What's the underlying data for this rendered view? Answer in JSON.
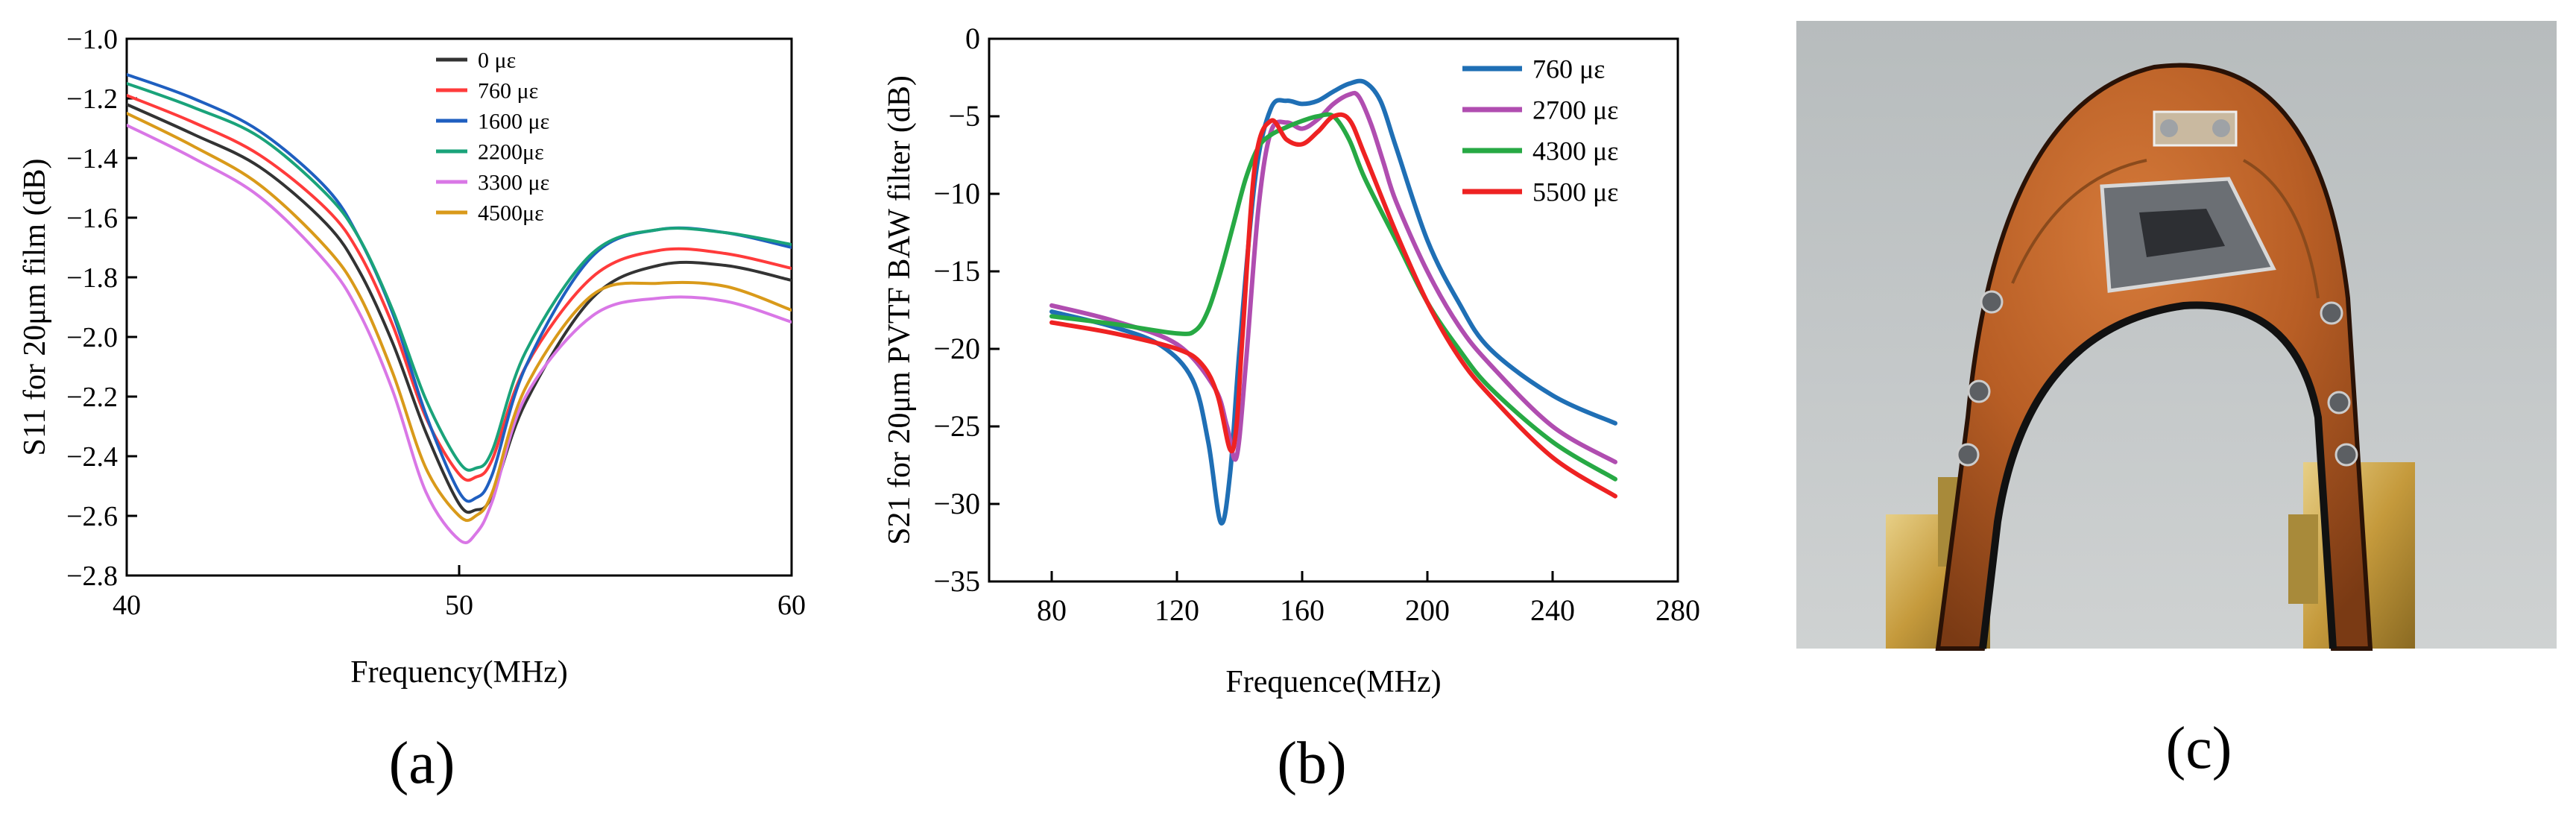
{
  "chart_data": [
    {
      "type": "line",
      "panel_label": "(a)",
      "xlabel": "Frequency(MHz)",
      "ylabel": "S11 for 20μm film (dB)",
      "xlim": [
        40,
        60
      ],
      "ylim": [
        -2.8,
        -1.0
      ],
      "xticks": [
        40,
        50,
        60
      ],
      "yticks": [
        -1.0,
        -1.2,
        -1.4,
        -1.6,
        -1.8,
        -2.0,
        -2.2,
        -2.4,
        -2.6,
        -2.8
      ],
      "xtick_labels": [
        "40",
        "50",
        "60"
      ],
      "ytick_labels": [
        "−1.0",
        "−1.2",
        "−1.4",
        "−1.6",
        "−1.8",
        "−2.0",
        "−2.2",
        "−2.4",
        "−2.6",
        "−2.8"
      ],
      "legend_position": "top-center",
      "grid": false,
      "series": [
        {
          "name": "0 με",
          "color": "#333333",
          "x": [
            40,
            42,
            44,
            46,
            47,
            48,
            49,
            50,
            50.5,
            51,
            52,
            54,
            56,
            58,
            60
          ],
          "y": [
            -1.22,
            -1.32,
            -1.43,
            -1.62,
            -1.78,
            -2.02,
            -2.32,
            -2.56,
            -2.58,
            -2.53,
            -2.22,
            -1.87,
            -1.76,
            -1.76,
            -1.81
          ]
        },
        {
          "name": "760 με",
          "color": "#ff3b3b",
          "x": [
            40,
            42,
            44,
            46,
            47,
            48,
            49,
            50,
            50.5,
            51,
            52,
            54,
            56,
            58,
            60
          ],
          "y": [
            -1.19,
            -1.28,
            -1.39,
            -1.57,
            -1.72,
            -1.96,
            -2.27,
            -2.46,
            -2.47,
            -2.41,
            -2.1,
            -1.8,
            -1.71,
            -1.72,
            -1.77
          ]
        },
        {
          "name": "1600 με",
          "color": "#1f5fc0",
          "x": [
            40,
            42,
            44,
            46,
            47,
            48,
            49,
            50,
            50.5,
            51,
            52,
            54,
            56,
            58,
            60
          ],
          "y": [
            -1.12,
            -1.2,
            -1.31,
            -1.5,
            -1.67,
            -1.92,
            -2.26,
            -2.52,
            -2.54,
            -2.46,
            -2.1,
            -1.73,
            -1.64,
            -1.65,
            -1.7
          ]
        },
        {
          "name": "2200με",
          "color": "#1aa37a",
          "x": [
            40,
            42,
            44,
            46,
            47,
            48,
            49,
            50,
            50.5,
            51,
            52,
            54,
            56,
            58,
            60
          ],
          "y": [
            -1.15,
            -1.23,
            -1.33,
            -1.52,
            -1.67,
            -1.91,
            -2.21,
            -2.42,
            -2.44,
            -2.38,
            -2.05,
            -1.72,
            -1.64,
            -1.65,
            -1.69
          ]
        },
        {
          "name": "3300 με",
          "color": "#d977e6",
          "x": [
            40,
            42,
            44,
            46,
            47,
            48,
            49,
            50,
            50.5,
            51,
            52,
            54,
            56,
            58,
            60
          ],
          "y": [
            -1.29,
            -1.4,
            -1.53,
            -1.75,
            -1.92,
            -2.18,
            -2.52,
            -2.68,
            -2.66,
            -2.55,
            -2.2,
            -1.93,
            -1.87,
            -1.88,
            -1.95
          ]
        },
        {
          "name": "4500με",
          "color": "#d99a1a",
          "x": [
            40,
            42,
            44,
            46,
            47,
            48,
            49,
            50,
            50.5,
            51,
            52,
            54,
            56,
            58,
            60
          ],
          "y": [
            -1.25,
            -1.36,
            -1.49,
            -1.7,
            -1.86,
            -2.12,
            -2.44,
            -2.6,
            -2.6,
            -2.52,
            -2.17,
            -1.86,
            -1.82,
            -1.83,
            -1.91
          ]
        }
      ]
    },
    {
      "type": "line",
      "panel_label": "(b)",
      "xlabel": "Frequence(MHz)",
      "ylabel": "S21 for 20μm PVTF BAW filter (dB)",
      "xlim": [
        60,
        280
      ],
      "ylim": [
        -35,
        0
      ],
      "xticks": [
        80,
        120,
        160,
        200,
        240,
        280
      ],
      "yticks": [
        0,
        -5,
        -10,
        -15,
        -20,
        -25,
        -30,
        -35
      ],
      "xtick_labels": [
        "80",
        "120",
        "160",
        "200",
        "240",
        "280"
      ],
      "ytick_labels": [
        "0",
        "−5",
        "−10",
        "−15",
        "−20",
        "−25",
        "−30",
        "−35"
      ],
      "legend_position": "top-right",
      "grid": false,
      "series": [
        {
          "name": "760 με",
          "color": "#1f6fb5",
          "x": [
            80,
            100,
            115,
            125,
            130,
            134,
            137,
            140,
            145,
            150,
            155,
            160,
            165,
            170,
            175,
            180,
            185,
            190,
            200,
            210,
            220,
            240,
            260
          ],
          "y": [
            -17.6,
            -18.6,
            -19.8,
            -22,
            -26,
            -31.2,
            -28,
            -20,
            -9,
            -4.5,
            -4,
            -4.2,
            -4,
            -3.4,
            -2.9,
            -2.8,
            -4,
            -7,
            -13,
            -17,
            -20,
            -23,
            -24.8
          ]
        },
        {
          "name": "2700 με",
          "color": "#b04db0",
          "x": [
            80,
            100,
            120,
            132,
            136,
            139,
            142,
            146,
            150,
            155,
            160,
            165,
            170,
            175,
            178,
            182,
            186,
            190,
            200,
            210,
            220,
            240,
            260
          ],
          "y": [
            -17.2,
            -18.2,
            -19.7,
            -22.5,
            -25,
            -27,
            -21,
            -11,
            -6,
            -5.4,
            -5.8,
            -5.2,
            -4.2,
            -3.6,
            -3.7,
            -5.5,
            -8,
            -10.5,
            -15,
            -18.5,
            -21,
            -25,
            -27.3
          ]
        },
        {
          "name": "4300 με",
          "color": "#27a944",
          "x": [
            80,
            100,
            120,
            126,
            130,
            134,
            138,
            142,
            146,
            150,
            155,
            160,
            165,
            170,
            175,
            180,
            190,
            200,
            210,
            220,
            240,
            260
          ],
          "y": [
            -17.9,
            -18.4,
            -19,
            -18.8,
            -17.5,
            -15,
            -12,
            -9,
            -7,
            -6.2,
            -5.7,
            -5.3,
            -5,
            -5,
            -6.5,
            -9,
            -13,
            -17,
            -20,
            -22.5,
            -26,
            -28.4
          ]
        },
        {
          "name": "5500 με",
          "color": "#ee2222",
          "x": [
            80,
            100,
            120,
            128,
            133,
            137,
            139,
            141,
            145,
            150,
            155,
            160,
            165,
            170,
            175,
            180,
            190,
            200,
            210,
            220,
            240,
            260
          ],
          "y": [
            -18.3,
            -19,
            -20,
            -21,
            -23,
            -26.5,
            -25,
            -19,
            -8,
            -5.3,
            -6.5,
            -6.8,
            -6,
            -5,
            -5.2,
            -7.5,
            -12.5,
            -17,
            -20.5,
            -23,
            -27,
            -29.5
          ]
        }
      ]
    }
  ],
  "panel_c": {
    "label": "(c)",
    "photo_description_icon": "bent-flexible-filter-photo-icon",
    "palette": {
      "background": "#b9bfc0",
      "substrate": "#b25a22",
      "substrate_dark": "#7a3a14",
      "metal": "#c9a54a"
    }
  }
}
